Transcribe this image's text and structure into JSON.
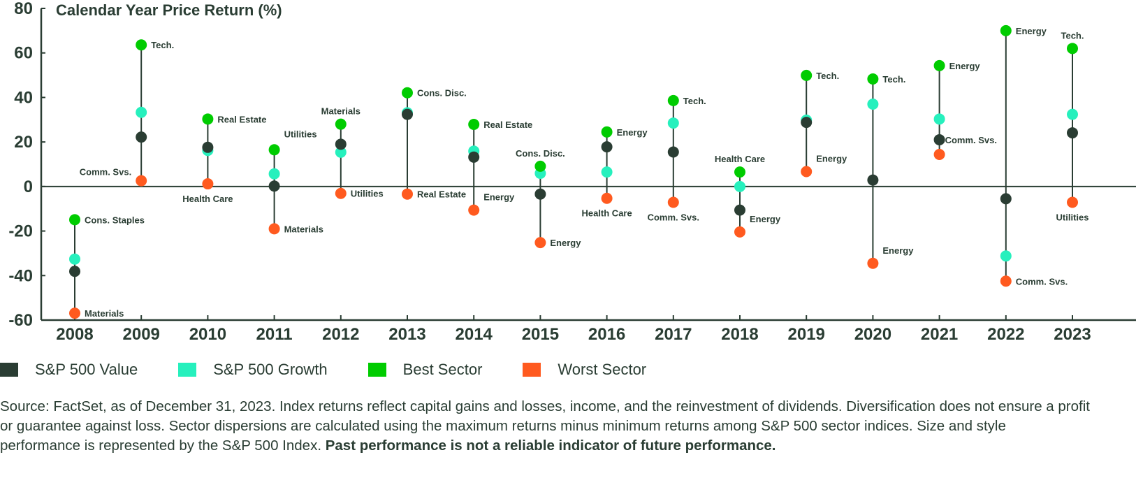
{
  "chart_data": {
    "type": "dot-range",
    "title": "Calendar Year Price Return (%)",
    "ylim": [
      -60,
      80
    ],
    "yticks": [
      80,
      60,
      40,
      20,
      0,
      -20,
      -40,
      -60
    ],
    "grid": false,
    "legend_position": "bottom-left",
    "categories": [
      "2008",
      "2009",
      "2010",
      "2011",
      "2012",
      "2013",
      "2014",
      "2015",
      "2016",
      "2017",
      "2018",
      "2019",
      "2020",
      "2021",
      "2022",
      "2023"
    ],
    "series": [
      {
        "name": "S&P 500 Value",
        "color": "#2a3d33",
        "values": [
          -38.1,
          22.2,
          17.6,
          0.2,
          19.0,
          32.4,
          13.2,
          -3.4,
          17.8,
          15.5,
          -10.6,
          28.8,
          2.9,
          21.0,
          -5.5,
          24.1
        ]
      },
      {
        "name": "S&P 500 Growth",
        "color": "#26f0bd",
        "values": [
          -32.6,
          33.3,
          16.2,
          5.7,
          15.4,
          33.1,
          15.9,
          5.9,
          6.5,
          28.5,
          0.0,
          29.8,
          37.0,
          30.3,
          -31.2,
          32.4
        ]
      },
      {
        "name": "Best Sector",
        "color": "#00cc00",
        "values": [
          -14.9,
          63.6,
          30.3,
          16.5,
          28.0,
          42.1,
          27.9,
          9.1,
          24.5,
          38.6,
          6.5,
          49.9,
          48.3,
          54.3,
          70.0,
          62.0
        ],
        "labels": [
          "Cons. Staples",
          "Tech.",
          "Real Estate",
          "Utilities",
          "Materials",
          "Cons. Disc.",
          "Real Estate",
          "Cons. Disc.",
          "Energy",
          "Tech.",
          "Health Care",
          "Tech.",
          "Tech.",
          "Energy",
          "Energy",
          "Tech."
        ]
      },
      {
        "name": "Worst Sector",
        "color": "#ff5a1f",
        "values": [
          -56.9,
          2.6,
          1.2,
          -19.0,
          -3.1,
          -3.4,
          -10.6,
          -25.2,
          -5.3,
          -7.1,
          -20.4,
          6.7,
          -34.5,
          14.4,
          -42.5,
          -7.1
        ],
        "labels": [
          "Materials",
          "Comm. Svs.",
          "Health Care",
          "Materials",
          "Utilities",
          "Real Estate",
          "Energy",
          "Energy",
          "Health Care",
          "Comm. Svs.",
          "Energy",
          "Energy",
          "Energy",
          "Comm. Svs.",
          "Comm. Svs.",
          "Utilities"
        ]
      }
    ]
  },
  "legend": {
    "value": "S&P 500 Value",
    "growth": "S&P 500 Growth",
    "best": "Best Sector",
    "worst": "Worst Sector"
  },
  "footnote": {
    "text": "Source: FactSet, as of December 31, 2023.  Index returns reflect capital gains and losses, income, and the reinvestment of dividends. Diversification does not ensure a profit or guarantee against loss. Sector dispersions are calculated using the maximum returns minus minimum returns among S&P 500 sector indices. Size and style performance is represented by the S&P 500 Index. ",
    "bold": "Past performance is not a reliable indicator of future performance."
  }
}
